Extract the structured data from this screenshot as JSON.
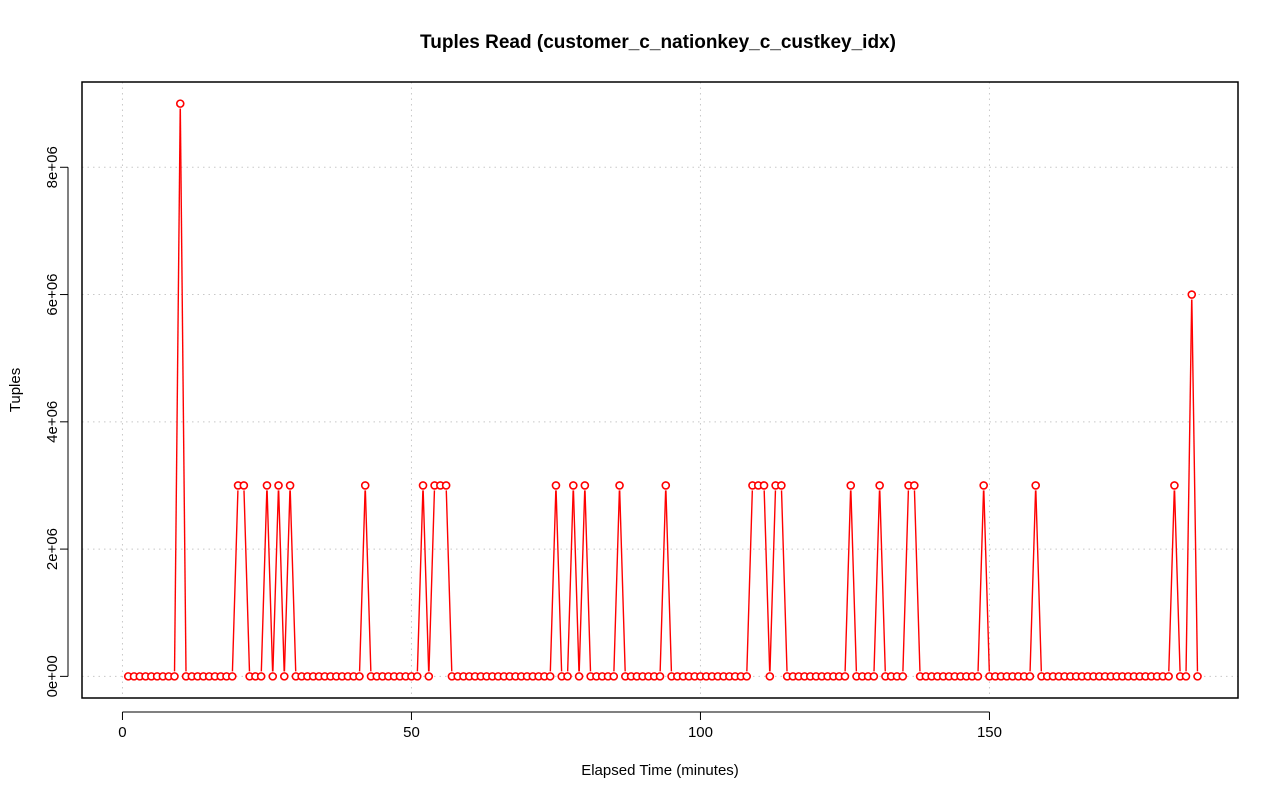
{
  "chart_data": {
    "type": "line",
    "title": "Tuples Read (customer_c_nationkey_c_custkey_idx)",
    "xlabel": "Elapsed Time (minutes)",
    "ylabel": "Tuples",
    "xlim": [
      -7,
      193
    ],
    "ylim": [
      -340000,
      9340000
    ],
    "x_ticks": [
      0,
      50,
      100,
      150
    ],
    "x_tick_labels": [
      "0",
      "50",
      "100",
      "150"
    ],
    "y_ticks": [
      0,
      2000000,
      4000000,
      6000000,
      8000000
    ],
    "y_tick_labels": [
      "0e+00",
      "2e+06",
      "4e+06",
      "6e+06",
      "8e+06"
    ],
    "grid": true,
    "series_color": "#ff0000",
    "series": [
      {
        "x_start": 1,
        "x_step": 1,
        "values": [
          0,
          0,
          0,
          0,
          0,
          0,
          0,
          0,
          0,
          9000000,
          0,
          0,
          0,
          0,
          0,
          0,
          0,
          0,
          0,
          3000000,
          3000000,
          0,
          0,
          0,
          3000000,
          0,
          3000000,
          0,
          3000000,
          0,
          0,
          0,
          0,
          0,
          0,
          0,
          0,
          0,
          0,
          0,
          0,
          3000000,
          0,
          0,
          0,
          0,
          0,
          0,
          0,
          0,
          0,
          3000000,
          0,
          3000000,
          3000000,
          3000000,
          0,
          0,
          0,
          0,
          0,
          0,
          0,
          0,
          0,
          0,
          0,
          0,
          0,
          0,
          0,
          0,
          0,
          0,
          3000000,
          0,
          0,
          3000000,
          0,
          3000000,
          0,
          0,
          0,
          0,
          0,
          3000000,
          0,
          0,
          0,
          0,
          0,
          0,
          0,
          3000000,
          0,
          0,
          0,
          0,
          0,
          0,
          0,
          0,
          0,
          0,
          0,
          0,
          0,
          0,
          3000000,
          3000000,
          3000000,
          0,
          3000000,
          3000000,
          0,
          0,
          0,
          0,
          0,
          0,
          0,
          0,
          0,
          0,
          0,
          3000000,
          0,
          0,
          0,
          0,
          3000000,
          0,
          0,
          0,
          0,
          3000000,
          3000000,
          0,
          0,
          0,
          0,
          0,
          0,
          0,
          0,
          0,
          0,
          0,
          3000000,
          0,
          0,
          0,
          0,
          0,
          0,
          0,
          0,
          3000000,
          0,
          0,
          0,
          0,
          0,
          0,
          0,
          0,
          0,
          0,
          0,
          0,
          0,
          0,
          0,
          0,
          0,
          0,
          0,
          0,
          0,
          0,
          0,
          3000000,
          0,
          0,
          6000000,
          0
        ]
      }
    ]
  }
}
